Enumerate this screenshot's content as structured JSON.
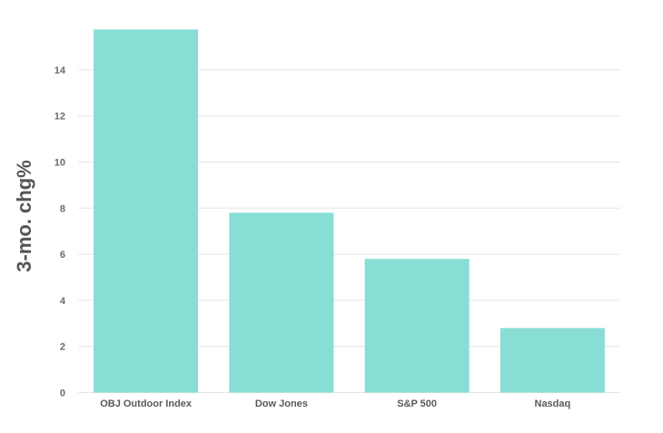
{
  "chart_data": {
    "type": "bar",
    "title": "",
    "xlabel": "",
    "ylabel": "3-mo. chg%",
    "categories": [
      "OBJ Outdoor Index",
      "Dow Jones",
      "S&P 500",
      "Nasdaq"
    ],
    "values": [
      15.75,
      7.8,
      5.8,
      2.8
    ],
    "ylim": [
      0,
      16
    ],
    "yticks": [
      0,
      2,
      4,
      6,
      8,
      10,
      12,
      14
    ],
    "grid": true,
    "legend": "none",
    "bar_color": "#88ded4",
    "grid_color": "#e6e6e6"
  }
}
